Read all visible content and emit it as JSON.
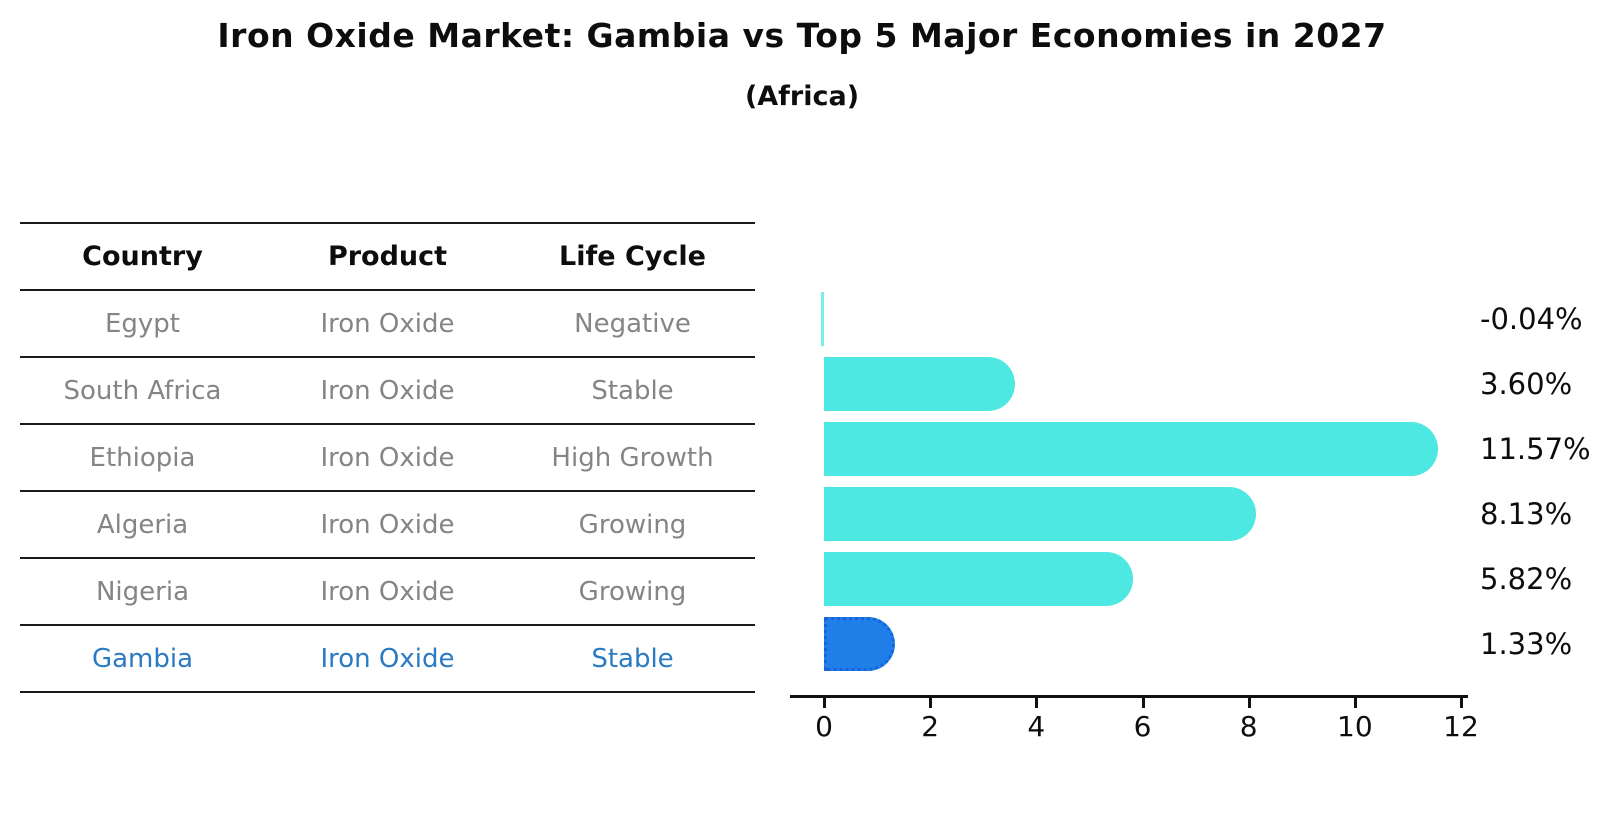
{
  "header": {
    "title": "Iron Oxide Market: Gambia vs Top 5 Major Economies in 2027",
    "subtitle": "(Africa)"
  },
  "table": {
    "columns": [
      "Country",
      "Product",
      "Life Cycle"
    ],
    "rows": [
      {
        "country": "Egypt",
        "product": "Iron Oxide",
        "life_cycle": "Negative",
        "highlight": false
      },
      {
        "country": "South Africa",
        "product": "Iron Oxide",
        "life_cycle": "Stable",
        "highlight": false
      },
      {
        "country": "Ethiopia",
        "product": "Iron Oxide",
        "life_cycle": "High Growth",
        "highlight": false
      },
      {
        "country": "Algeria",
        "product": "Iron Oxide",
        "life_cycle": "Growing",
        "highlight": false
      },
      {
        "country": "Nigeria",
        "product": "Iron Oxide",
        "life_cycle": "Growing",
        "highlight": true
      }
    ]
  },
  "chart_data": {
    "type": "bar",
    "orientation": "horizontal",
    "title": "Iron Oxide Market: Gambia vs Top 5 Major Economies in 2027",
    "subtitle": "(Africa)",
    "categories": [
      "Egypt",
      "South Africa",
      "Ethiopia",
      "Algeria",
      "Nigeria",
      "Gambia"
    ],
    "values": [
      -0.04,
      3.6,
      11.57,
      8.13,
      5.82,
      1.33
    ],
    "labels": [
      "-0.04%",
      "3.60%",
      "11.57%",
      "8.13%",
      "5.82%",
      "1.33%"
    ],
    "xticks": [
      0,
      2,
      4,
      6,
      8,
      10,
      12
    ],
    "xlim": [
      -0.6,
      12.1
    ],
    "grid": false,
    "legend": "none",
    "highlight_index": 5,
    "bar_color": "#4de8e2",
    "highlight_color": "#1f7ee8",
    "highlight_border_color": "#1565d8",
    "highlight_text_color": "#2a7ac4"
  }
}
